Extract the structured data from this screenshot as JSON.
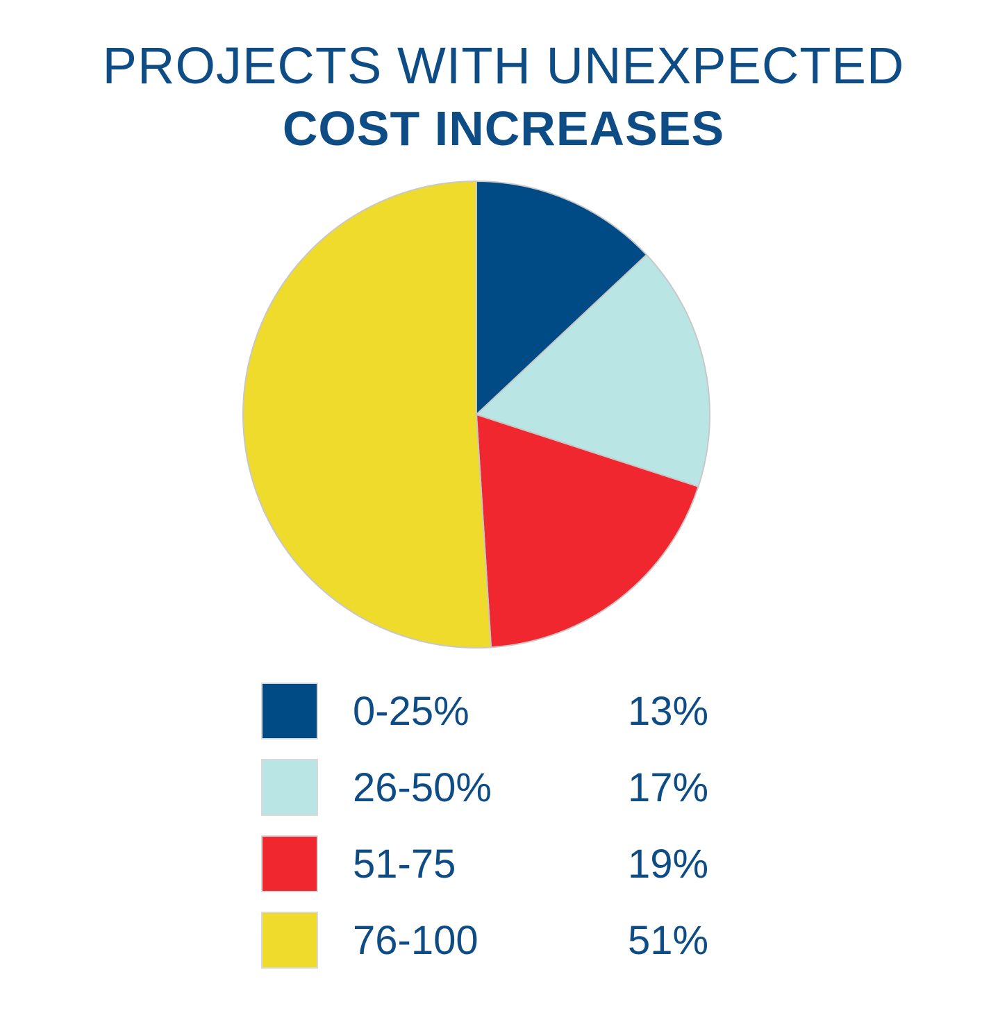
{
  "title_line1": "PROJECTS WITH UNEXPECTED",
  "title_line2": "COST INCREASES",
  "colors": {
    "text": "#0e4c86",
    "slice_0_25": "#004a86",
    "slice_26_50": "#b9e6e4",
    "slice_51_75": "#f0272e",
    "slice_76_100": "#eedb2b"
  },
  "chart_data": {
    "type": "pie",
    "title": "PROJECTS WITH UNEXPECTED COST INCREASES",
    "slices": [
      {
        "label": "0-25%",
        "value": 13,
        "display": "13%",
        "color": "#004a86"
      },
      {
        "label": "26-50%",
        "value": 17,
        "display": "17%",
        "color": "#b9e6e4"
      },
      {
        "label": "51-75",
        "value": 19,
        "display": "19%",
        "color": "#f0272e"
      },
      {
        "label": "76-100",
        "value": 51,
        "display": "51%",
        "color": "#eedb2b"
      }
    ],
    "start_position": "top",
    "direction": "clockwise",
    "legend_placement": "bottom"
  }
}
